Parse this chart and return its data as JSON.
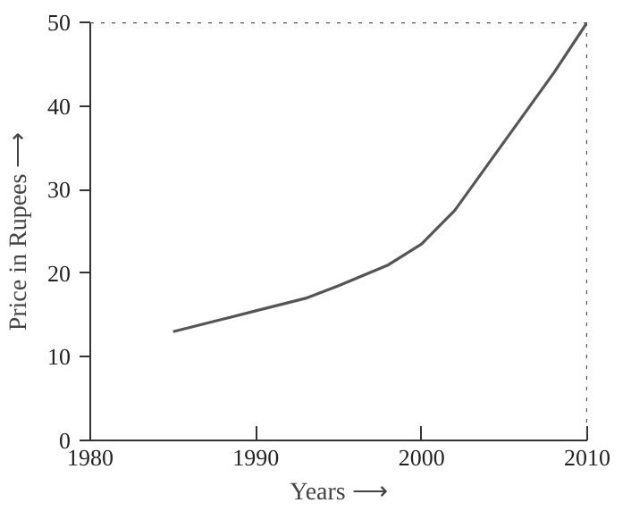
{
  "chart_data": {
    "type": "line",
    "xlabel": "Years ⟶",
    "ylabel": "Price in Rupees ⟶",
    "x": [
      1985,
      1988,
      1990,
      1993,
      1995,
      1998,
      2000,
      2002,
      2004,
      2006,
      2008,
      2010
    ],
    "series": [
      {
        "color": "#555555",
        "values": [
          13,
          14.5,
          15.5,
          17,
          18.5,
          21,
          23.5,
          27.5,
          33,
          38.5,
          44,
          50
        ]
      }
    ],
    "xlim": [
      1980,
      2010
    ],
    "ylim": [
      0,
      50
    ],
    "xticks": [
      1980,
      1990,
      2000,
      2010
    ],
    "yticks": [
      0,
      10,
      20,
      30,
      40,
      50
    ],
    "ref_lines": [
      {
        "axis": "x",
        "value": 2010,
        "line_style": "dotted",
        "color": "#555555"
      },
      {
        "axis": "y",
        "value": 50,
        "line_style": "dotted",
        "color": "#555555"
      }
    ],
    "grid": false,
    "line_style": "solid",
    "marker": "none"
  }
}
